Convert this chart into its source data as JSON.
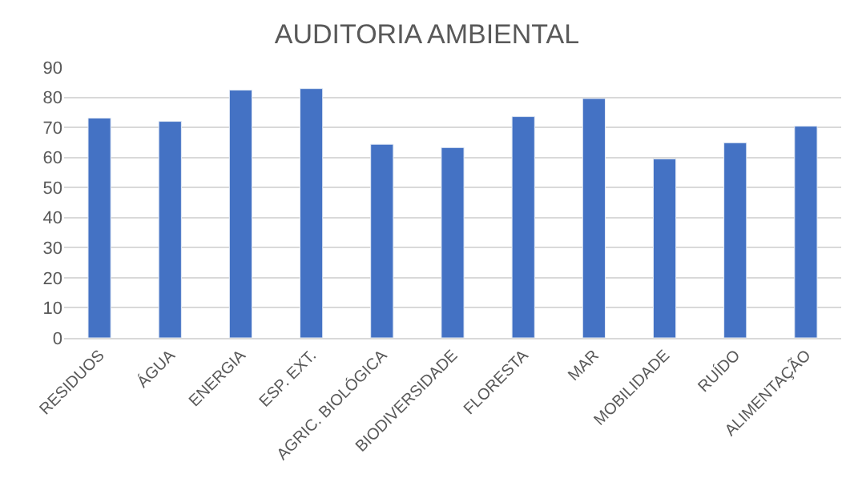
{
  "chart_data": {
    "type": "bar",
    "title": "AUDITORIA AMBIENTAL",
    "categories": [
      "RESIDUOS",
      "ÁGUA",
      "ENERGIA",
      "ESP. EXT.",
      "AGRIC. BIOLÓGICA",
      "BIODIVERSIDADE",
      "FLORESTA",
      "MAR",
      "MOBILIDADE",
      "RUÍDO",
      "ALIMENTAÇÃO"
    ],
    "values": [
      73.1,
      72,
      82.4,
      82.9,
      64.4,
      63.3,
      73.6,
      79.6,
      59.5,
      64.9,
      70.4
    ],
    "color": "#4472c4",
    "ylim": [
      0,
      90
    ],
    "yticks": [
      0,
      10,
      20,
      30,
      40,
      50,
      60,
      70,
      80,
      90
    ],
    "grid": "y",
    "legend": false
  }
}
